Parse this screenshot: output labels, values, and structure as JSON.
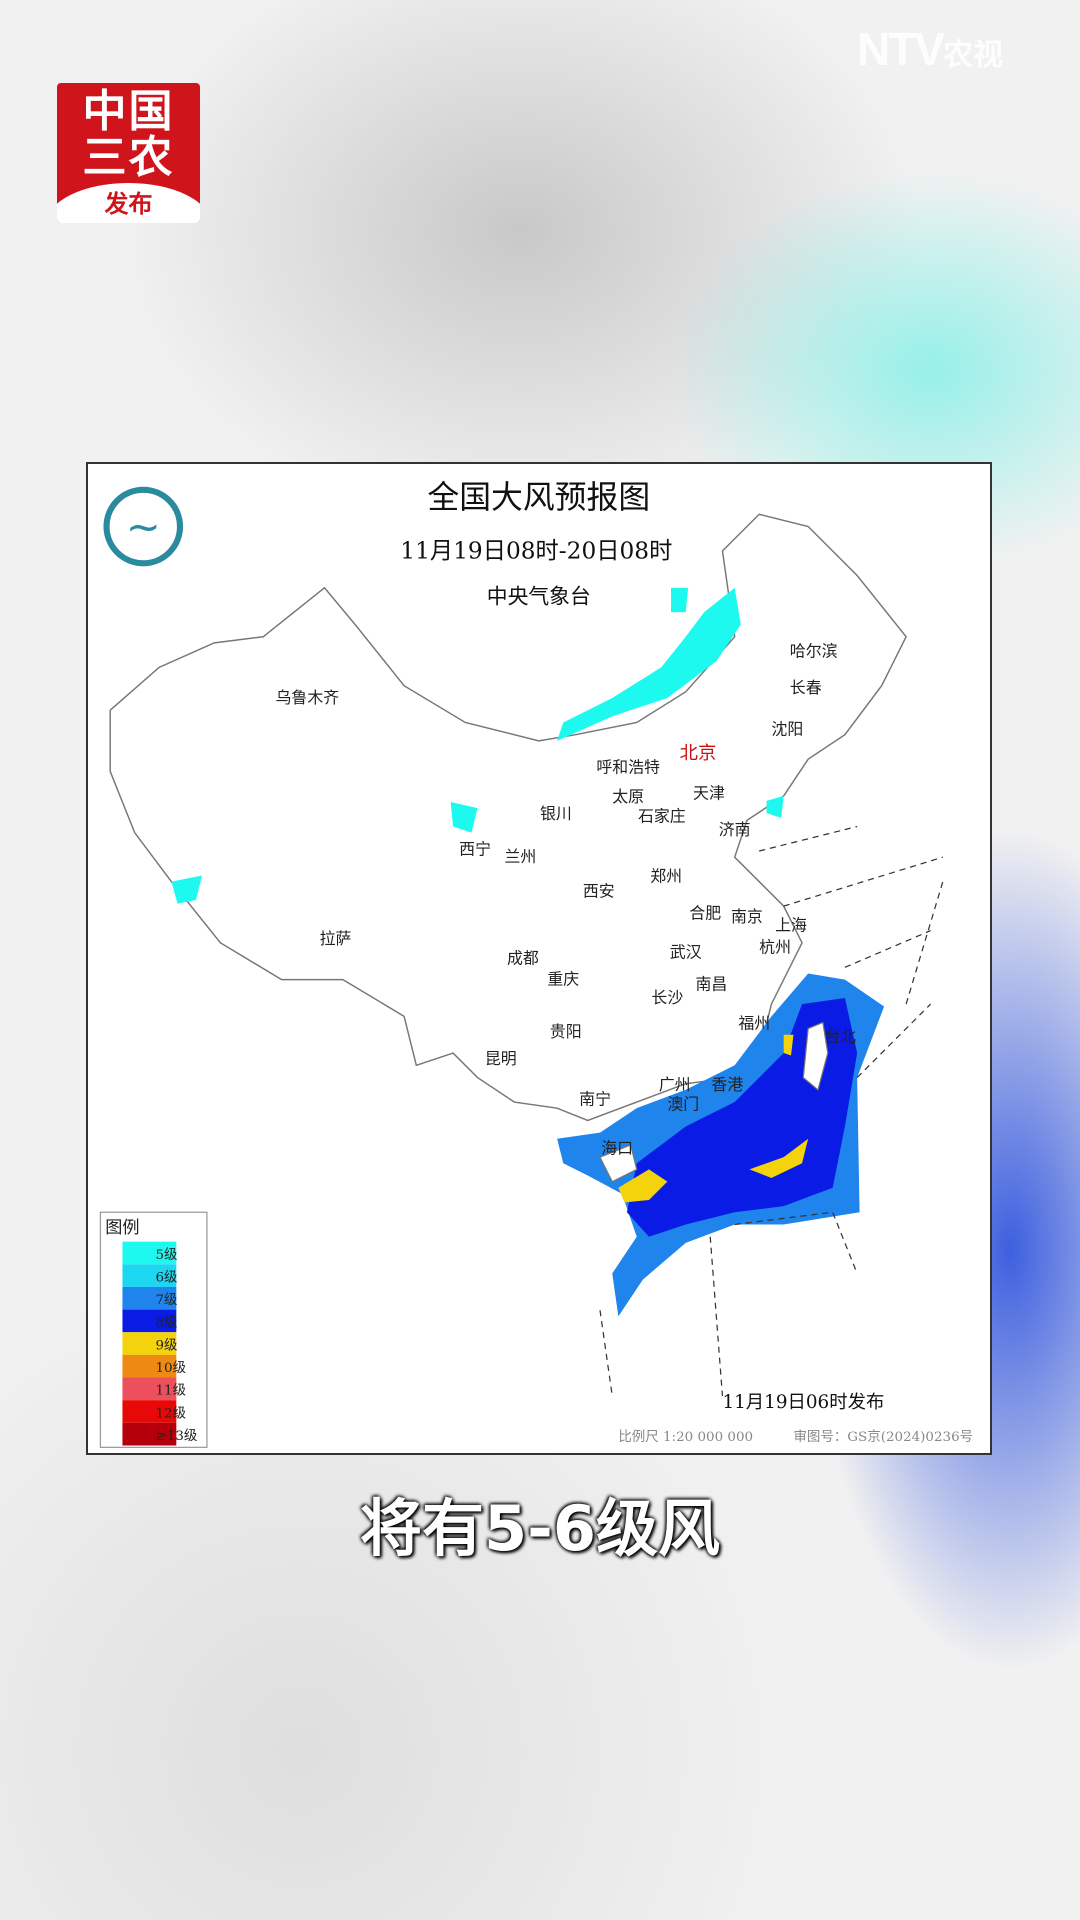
{
  "brand": {
    "line1": "中国",
    "line2": "三农",
    "line3": "发布"
  },
  "watermark": {
    "latin": "NTV",
    "cn": "农视"
  },
  "map": {
    "title": "全国大风预报图",
    "period": "11月19日08时-20日08时",
    "issuer": "中央气象台",
    "issued": "11月19日06时发布",
    "scale": "比例尺 1:20 000 000",
    "approval": "审图号：GS京(2024)0236号",
    "legend": {
      "title": "图例",
      "items": [
        {
          "label": "5级",
          "color": "#1ef9f0"
        },
        {
          "label": "6级",
          "color": "#1cd6f2"
        },
        {
          "label": "7级",
          "color": "#1f84ec"
        },
        {
          "label": "8级",
          "color": "#0a1be6"
        },
        {
          "label": "9级",
          "color": "#f4d20c"
        },
        {
          "label": "10级",
          "color": "#ee8a12"
        },
        {
          "label": "11级",
          "color": "#ee4f5c"
        },
        {
          "label": "12级",
          "color": "#e80808"
        },
        {
          "label": "≥13级",
          "color": "#b5000b"
        }
      ]
    },
    "cities": {
      "urumqi": "乌鲁木齐",
      "harbin": "哈尔滨",
      "changchun": "长春",
      "shenyang": "沈阳",
      "beijing": "北京",
      "hohhot": "呼和浩特",
      "tianjin": "天津",
      "taiyuan": "太原",
      "shijiazhuang": "石家庄",
      "yinchuan": "银川",
      "xining": "西宁",
      "lanzhou": "兰州",
      "jinan": "济南",
      "xian": "西安",
      "zhengzhou": "郑州",
      "hefei": "合肥",
      "nanjing": "南京",
      "shanghai": "上海",
      "hangzhou": "杭州",
      "lhasa": "拉萨",
      "chengdu": "成都",
      "wuhan": "武汉",
      "chongqing": "重庆",
      "changsha": "长沙",
      "nanchang": "南昌",
      "fuzhou": "福州",
      "taipei": "台北",
      "guiyang": "贵阳",
      "kunming": "昆明",
      "guangzhou": "广州",
      "hongkong": "香港",
      "nanning": "南宁",
      "macau": "澳门",
      "haikou": "海口"
    }
  },
  "caption": "将有5-6级风"
}
